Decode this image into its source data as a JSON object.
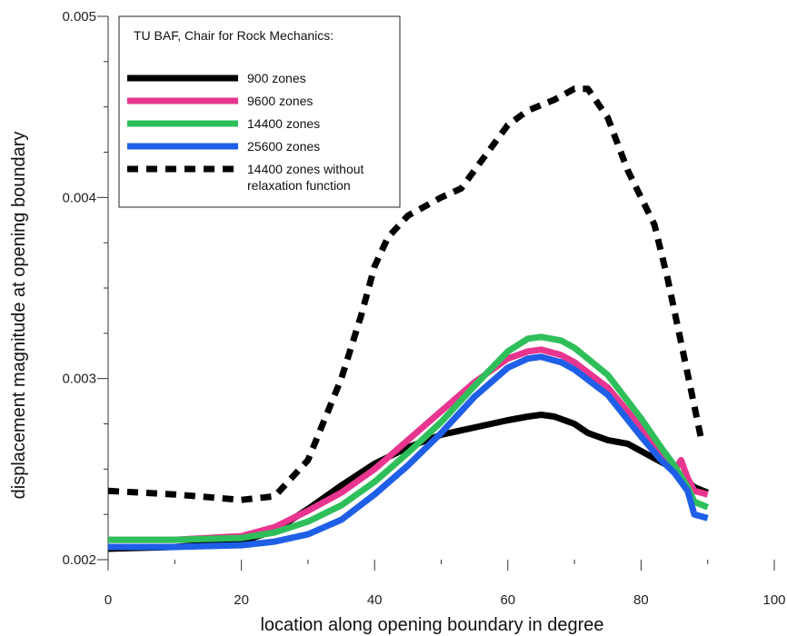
{
  "chart_data": {
    "type": "line",
    "xlabel": "location along opening boundary in degree",
    "ylabel": "displacement magnitude at opening boundary",
    "xlim": [
      0,
      100
    ],
    "ylim": [
      0.002,
      0.005
    ],
    "x_ticks": [
      "0",
      "20",
      "40",
      "60",
      "80",
      "100"
    ],
    "y_ticks": [
      "0.002",
      "0.003",
      "0.004",
      "0.005"
    ],
    "legend": {
      "title": "TU BAF, Chair for Rock Mechanics:",
      "placement": "top-left"
    },
    "series": [
      {
        "name": "900 zones",
        "color": "#000000",
        "dashed": false,
        "x": [
          0,
          10,
          20,
          25,
          30,
          35,
          40,
          45,
          50,
          55,
          60,
          63,
          65,
          67,
          70,
          72,
          75,
          78,
          80,
          82,
          85,
          88,
          90
        ],
        "y": [
          0.00206,
          0.00207,
          0.0021,
          0.00216,
          0.00228,
          0.00241,
          0.00253,
          0.00262,
          0.00269,
          0.00273,
          0.00277,
          0.00279,
          0.0028,
          0.00279,
          0.00275,
          0.0027,
          0.00266,
          0.00264,
          0.0026,
          0.00256,
          0.0025,
          0.0024,
          0.00237
        ]
      },
      {
        "name": "9600 zones",
        "color": "#e8358f",
        "dashed": false,
        "x": [
          0,
          10,
          20,
          25,
          30,
          35,
          40,
          45,
          50,
          55,
          60,
          63,
          65,
          68,
          70,
          75,
          80,
          83,
          85,
          86,
          87,
          88,
          90
        ],
        "y": [
          0.00211,
          0.00211,
          0.00213,
          0.00218,
          0.00227,
          0.00237,
          0.0025,
          0.00266,
          0.00282,
          0.00298,
          0.00311,
          0.00315,
          0.00316,
          0.00313,
          0.00309,
          0.00295,
          0.00273,
          0.00258,
          0.00249,
          0.00255,
          0.00245,
          0.00238,
          0.00236
        ]
      },
      {
        "name": "14400 zones",
        "color": "#2fbf5a",
        "dashed": false,
        "x": [
          0,
          10,
          20,
          25,
          30,
          35,
          40,
          45,
          50,
          55,
          60,
          63,
          65,
          68,
          70,
          75,
          80,
          83,
          85,
          87,
          88,
          90
        ],
        "y": [
          0.00211,
          0.00211,
          0.00212,
          0.00215,
          0.00221,
          0.0023,
          0.00243,
          0.00259,
          0.00276,
          0.00296,
          0.00315,
          0.00322,
          0.00323,
          0.00321,
          0.00317,
          0.00302,
          0.00278,
          0.00262,
          0.00252,
          0.0024,
          0.00232,
          0.00229
        ]
      },
      {
        "name": "25600 zones",
        "color": "#1f5fe8",
        "dashed": false,
        "x": [
          0,
          10,
          20,
          25,
          30,
          35,
          40,
          45,
          50,
          55,
          60,
          63,
          65,
          68,
          70,
          75,
          80,
          83,
          85,
          87,
          88,
          90
        ],
        "y": [
          0.00207,
          0.00207,
          0.00208,
          0.0021,
          0.00214,
          0.00222,
          0.00236,
          0.00252,
          0.0027,
          0.0029,
          0.00306,
          0.00311,
          0.00312,
          0.00309,
          0.00305,
          0.00291,
          0.00268,
          0.00255,
          0.00248,
          0.00238,
          0.00225,
          0.00223
        ]
      },
      {
        "name": "14400 zones without relaxation function",
        "color": "#000000",
        "dashed": true,
        "x": [
          0,
          10,
          20,
          25,
          30,
          35,
          38,
          40,
          42,
          45,
          50,
          53,
          57,
          60,
          63,
          67,
          70,
          72,
          75,
          78,
          80,
          82,
          84,
          86,
          88,
          89
        ],
        "y": [
          0.00238,
          0.00236,
          0.00233,
          0.00235,
          0.00255,
          0.003,
          0.00335,
          0.00362,
          0.00378,
          0.0039,
          0.004,
          0.00405,
          0.00425,
          0.0044,
          0.00448,
          0.00454,
          0.0046,
          0.0046,
          0.00444,
          0.00415,
          0.004,
          0.00385,
          0.00355,
          0.0032,
          0.00285,
          0.00267
        ]
      }
    ]
  }
}
